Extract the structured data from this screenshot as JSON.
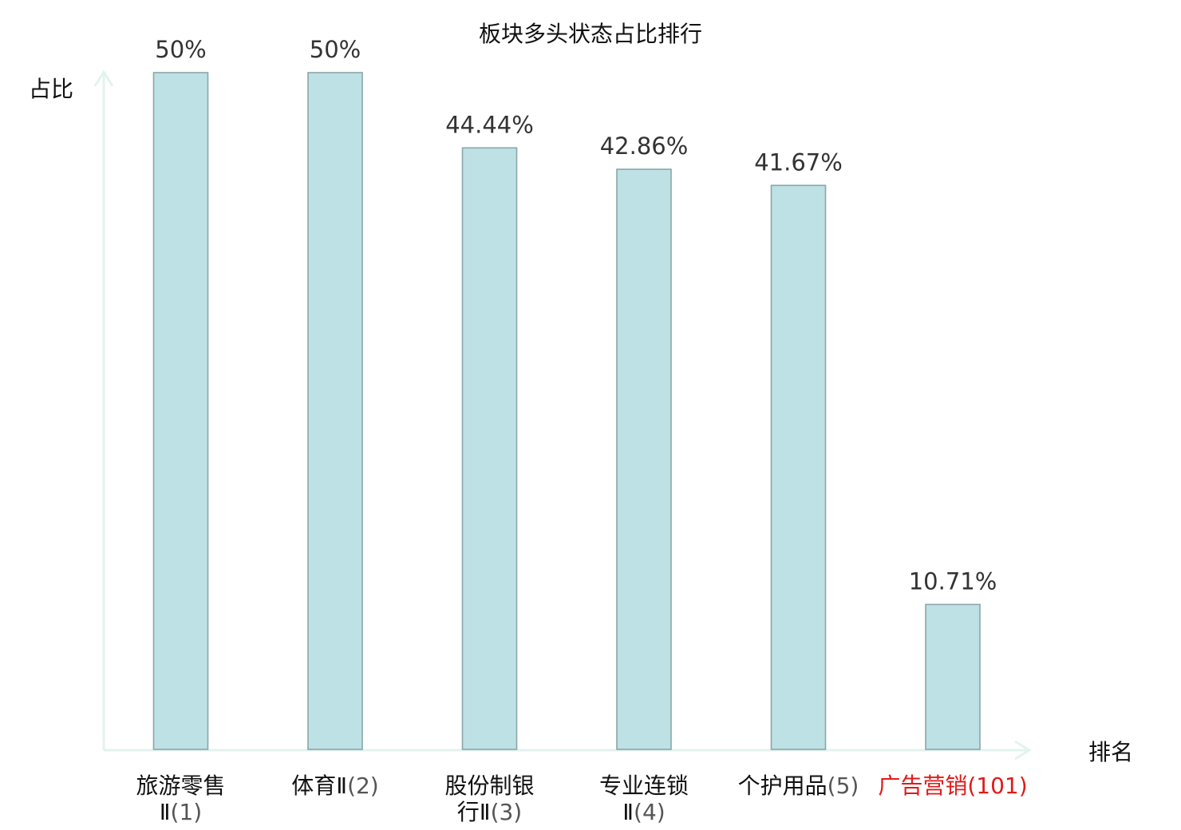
{
  "colors": {
    "bar_fill": "#bde1e4",
    "bar_stroke": "#8aa6a9",
    "axis": "#e3f3ef",
    "highlight": "#e01b1b"
  },
  "chart_data": {
    "type": "bar",
    "title": "板块多头状态占比排行",
    "ylabel": "占比",
    "xlabel": "排名",
    "ylim": [
      0,
      50
    ],
    "grid": false,
    "legend": "none",
    "categories": [
      {
        "lines": [
          "旅游零售",
          "Ⅱ"
        ],
        "rank": "(1)",
        "highlight": false
      },
      {
        "lines": [
          "体育Ⅱ"
        ],
        "rank": "(2)",
        "highlight": false
      },
      {
        "lines": [
          "股份制银",
          "行Ⅱ"
        ],
        "rank": "(3)",
        "highlight": false
      },
      {
        "lines": [
          "专业连锁",
          "Ⅱ"
        ],
        "rank": "(4)",
        "highlight": false
      },
      {
        "lines": [
          "个护用品"
        ],
        "rank": "(5)",
        "highlight": false
      },
      {
        "lines": [
          "广告营销"
        ],
        "rank": "(101)",
        "highlight": true
      }
    ],
    "values": [
      50,
      50,
      44.44,
      42.86,
      41.67,
      10.71
    ],
    "value_labels": [
      "50%",
      "50%",
      "44.44%",
      "42.86%",
      "41.67%",
      "10.71%"
    ]
  }
}
